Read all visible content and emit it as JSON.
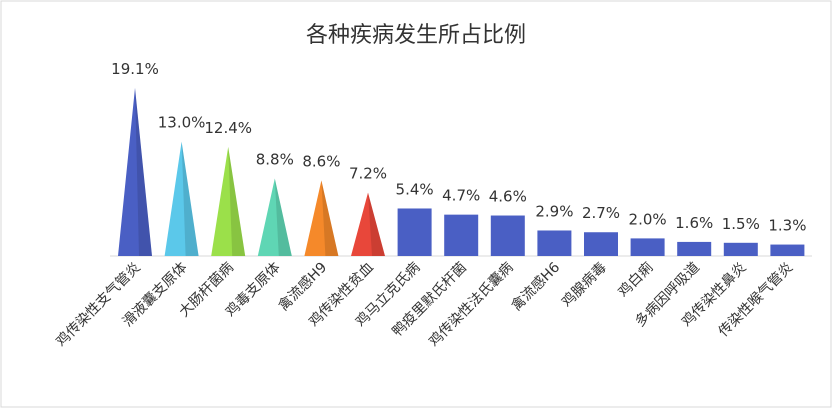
{
  "chart_data": {
    "type": "bar",
    "title": "各种疾病发生所占比例",
    "categories": [
      "鸡传染性支气管炎",
      "滑液囊支原体",
      "大肠杆菌病",
      "鸡毒支原体",
      "禽流感H9",
      "鸡传染性贫血",
      "鸡马立克氏病",
      "鸭疫里默氏杆菌",
      "鸡传染性法氏囊病",
      "禽流感H6",
      "鸡腺病毒",
      "鸡白痢",
      "多病因呼吸道",
      "鸡传染性鼻炎",
      "传染性喉气管炎"
    ],
    "values": [
      19.1,
      13.0,
      12.4,
      8.8,
      8.6,
      7.2,
      5.4,
      4.7,
      4.6,
      2.9,
      2.7,
      2.0,
      1.6,
      1.5,
      1.3
    ],
    "value_labels": [
      "19.1%",
      "13.0%",
      "12.4%",
      "8.8%",
      "8.6%",
      "7.2%",
      "5.4%",
      "4.7%",
      "4.6%",
      "2.9%",
      "2.7%",
      "2.0%",
      "1.6%",
      "1.5%",
      "1.3%"
    ],
    "colors": [
      "#4a5fc4",
      "#5bc8ea",
      "#9be04a",
      "#5fd6b4",
      "#f5892a",
      "#e8473a",
      "#4a5fc4",
      "#4a5fc4",
      "#4a5fc4",
      "#4a5fc4",
      "#4a5fc4",
      "#4a5fc4",
      "#4a5fc4",
      "#4a5fc4",
      "#4a5fc4"
    ],
    "mark_shapes": [
      "cone",
      "cone",
      "cone",
      "cone",
      "cone",
      "cone",
      "bar",
      "bar",
      "bar",
      "bar",
      "bar",
      "bar",
      "bar",
      "bar",
      "bar"
    ]
  }
}
